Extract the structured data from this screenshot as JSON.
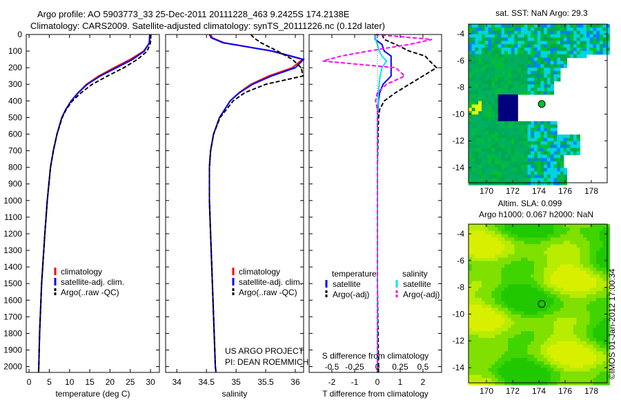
{
  "title_line1": "Argo profile: AO 5903773_33 25-Dec-2011 20111228_463 9.2425S 174.2138E",
  "title_line2": "Climatology: CARS2009. Satellite-adjusted climatology: synTS_20111226.nc (0.12d later)",
  "credit": "US ARGO PROJECT",
  "pi": "PI: DEAN ROEMMICH",
  "timestamp": "©IMOS 01-Jan-2012 17:00:34",
  "colors": {
    "climatology": "#ff0000",
    "satellite": "#0000ff",
    "argo": "#000000",
    "sal_satellite": "#00e5ee",
    "sal_argo": "#ff00ff"
  },
  "chart_data": [
    {
      "type": "line",
      "name": "temperature",
      "xlabel": "temperature (deg C)",
      "ylabel": "",
      "xlim": [
        -0.7,
        32.2
      ],
      "ylim": [
        0,
        2035
      ],
      "xticks": [
        0,
        5,
        10,
        15,
        20,
        25,
        30
      ],
      "yticks": [
        0,
        100,
        200,
        300,
        400,
        500,
        600,
        700,
        800,
        900,
        1000,
        1100,
        1200,
        1300,
        1400,
        1500,
        1600,
        1700,
        1800,
        1900,
        2000
      ],
      "legend": [
        "climatology",
        "satellite-adj. clim.",
        "Argo(..raw -QC)"
      ],
      "depth": [
        0,
        50,
        100,
        150,
        200,
        250,
        300,
        350,
        400,
        450,
        500,
        600,
        700,
        800,
        1000,
        1200,
        1500,
        1800,
        2000,
        2035
      ],
      "series": [
        {
          "name": "climatology",
          "style": "solid",
          "color": "#ff0000",
          "values": [
            29.9,
            29.8,
            28.3,
            25,
            21,
            17.2,
            14.2,
            12.1,
            10.4,
            9.1,
            8.1,
            6.9,
            6.0,
            5.3,
            4.5,
            3.9,
            3.1,
            2.6,
            2.4,
            2.35
          ]
        },
        {
          "name": "satellite-adj. clim.",
          "style": "solid",
          "color": "#0000ff",
          "values": [
            29.8,
            29.7,
            28.5,
            25.6,
            21.6,
            17.6,
            14.4,
            12.2,
            10.4,
            9.1,
            8.1,
            6.9,
            6.0,
            5.3,
            4.5,
            3.9,
            3.1,
            2.6,
            2.4,
            2.35
          ]
        },
        {
          "name": "Argo(..raw -QC)",
          "style": "dash",
          "color": "#000000",
          "values": [
            30.1,
            30.0,
            29.2,
            26.8,
            23.4,
            19.4,
            15.6,
            12.9,
            10.7,
            9.2,
            8.2,
            6.9,
            6.0,
            5.3,
            4.5,
            3.9,
            3.1,
            2.6,
            2.4,
            2.35
          ]
        }
      ]
    },
    {
      "type": "line",
      "name": "salinity",
      "xlabel": "salinity",
      "ylabel": "",
      "xlim": [
        33.81,
        36.14
      ],
      "ylim": [
        0,
        2035
      ],
      "xticks": [
        34,
        34.5,
        35,
        35.5,
        36
      ],
      "legend": [
        "climatology",
        "satellite-adj. clim.",
        "Argo(..raw -QC)"
      ],
      "depth": [
        0,
        20,
        50,
        100,
        150,
        200,
        250,
        300,
        350,
        400,
        500,
        600,
        700,
        800,
        1000,
        1200,
        1500,
        1800,
        2000,
        2035
      ],
      "series": [
        {
          "name": "climatology",
          "style": "solid",
          "color": "#ff0000",
          "values": [
            34.57,
            34.6,
            34.8,
            35.6,
            36.12,
            35.95,
            35.55,
            35.25,
            35.05,
            34.9,
            34.72,
            34.62,
            34.57,
            34.55,
            34.55,
            34.57,
            34.6,
            34.63,
            34.65,
            34.66
          ]
        },
        {
          "name": "satellite-adj. clim.",
          "style": "solid",
          "color": "#0000ff",
          "values": [
            34.55,
            34.58,
            34.78,
            35.62,
            36.14,
            36.0,
            35.6,
            35.28,
            35.06,
            34.9,
            34.72,
            34.62,
            34.57,
            34.55,
            34.55,
            34.57,
            34.6,
            34.63,
            34.65,
            34.66
          ]
        },
        {
          "name": "Argo(..raw -QC)",
          "style": "dash",
          "color": "#000000",
          "values": [
            35.25,
            35.3,
            35.42,
            35.7,
            35.95,
            36.1,
            36.13,
            35.5,
            35.15,
            34.95,
            34.73,
            34.62,
            34.57,
            34.55,
            34.55,
            34.57,
            34.6,
            34.63,
            34.65,
            34.66
          ]
        }
      ]
    },
    {
      "type": "line",
      "name": "difference",
      "xlabel": "T difference from climatology",
      "x2label": "S difference from climatology",
      "xlim": [
        -3,
        2.82
      ],
      "x2lim": [
        -0.75,
        0.705
      ],
      "ylim": [
        0,
        2035
      ],
      "xticks": [
        -2,
        -1,
        0,
        1,
        2
      ],
      "x2ticks": [
        -0.5,
        -0.25,
        0,
        0.25,
        0.5
      ],
      "x2ticklabels": [
        "-0.5",
        "-0.25",
        "0",
        "0.25",
        "0.5"
      ],
      "legend_titles": [
        "temperature",
        "salinity"
      ],
      "legend": [
        "satellite",
        "Argo(-adj)",
        "satellite",
        "Argo(-adj)"
      ],
      "depth": [
        0,
        30,
        60,
        100,
        130,
        160,
        200,
        250,
        300,
        350,
        400,
        450,
        500,
        600,
        800,
        1000,
        1500,
        2000,
        2035
      ],
      "series": [
        {
          "name": "T satellite",
          "axis": "T",
          "style": "solid",
          "color": "#0000ff",
          "values": [
            -0.1,
            -0.1,
            0.2,
            0.3,
            0.6,
            0.6,
            0.6,
            0.6,
            0.25,
            0.1,
            0.05,
            0.02,
            0,
            0,
            0,
            0,
            0,
            0,
            0
          ]
        },
        {
          "name": "T Argo(-adj)",
          "axis": "T",
          "style": "dash",
          "color": "#000000",
          "values": [
            0.2,
            0.3,
            0.8,
            1.4,
            2.1,
            2.3,
            2.6,
            2.0,
            1.4,
            0.8,
            0.3,
            0.1,
            0.05,
            0.03,
            0,
            0,
            0,
            0.05,
            0.05
          ]
        },
        {
          "name": "S satellite",
          "axis": "S",
          "style": "solid",
          "color": "#00e5ee",
          "values": [
            -0.02,
            -0.02,
            0,
            0.02,
            0.05,
            0.1,
            0.05,
            0.03,
            0.02,
            0.01,
            0.01,
            0,
            0,
            0,
            0,
            0,
            0,
            0,
            0
          ]
        },
        {
          "name": "S Argo(-adj)",
          "axis": "S",
          "style": "dash",
          "color": "#ff00ff",
          "values": [
            -0.02,
            0.6,
            0.35,
            -0.1,
            -0.4,
            -0.6,
            0.2,
            0.3,
            0.1,
            0,
            -0.02,
            0,
            0,
            0,
            0,
            0,
            0,
            0,
            0
          ]
        }
      ]
    },
    {
      "type": "heatmap",
      "name": "sst-map",
      "title": "sat. SST: NaN Argo: 29.3",
      "xlim": [
        168.63,
        179.21
      ],
      "ylim": [
        -15.13,
        -3.28
      ],
      "xticks": [
        170,
        172,
        174,
        176,
        178
      ],
      "yticks": [
        -4,
        -6,
        -8,
        -10,
        -12,
        -14
      ],
      "argo_point": {
        "lon": 174.2138,
        "lat": -9.2425
      }
    },
    {
      "type": "heatmap",
      "name": "sla-map",
      "title": "Altim. SLA: 0.099",
      "subtitle": "Argo h1000: 0.067 h2000: NaN",
      "xlim": [
        168.63,
        179.21
      ],
      "ylim": [
        -15.13,
        -3.28
      ],
      "xticks": [
        170,
        172,
        174,
        176,
        178
      ],
      "yticks": [
        -4,
        -6,
        -8,
        -10,
        -12,
        -14
      ],
      "argo_point": {
        "lon": 174.2138,
        "lat": -9.2425
      }
    }
  ]
}
